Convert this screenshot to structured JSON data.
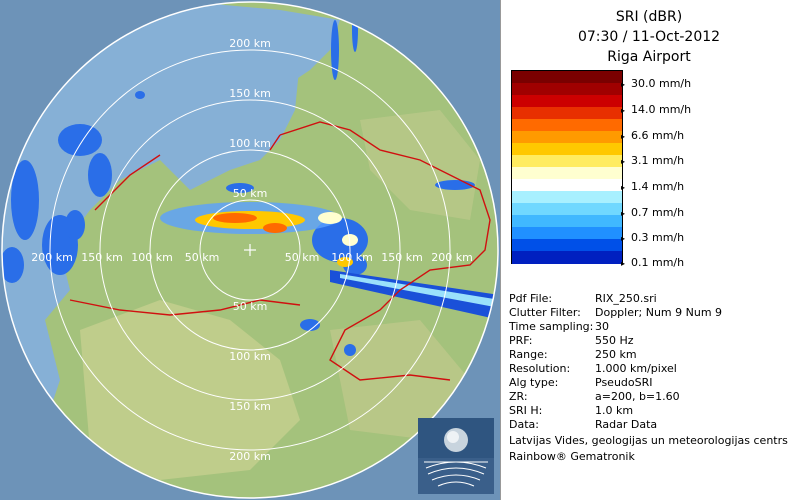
{
  "header": {
    "product": "SRI (dBR)",
    "datetime": "07:30 / 11-Oct-2012",
    "site": "Riga Airport"
  },
  "legend": {
    "colors": [
      "#7a0000",
      "#a00000",
      "#cc0000",
      "#e83000",
      "#ff6a00",
      "#ff9a00",
      "#ffc800",
      "#ffec60",
      "#ffffd0",
      "#ffffff",
      "#a8f0ff",
      "#70d8ff",
      "#40b8ff",
      "#2090ff",
      "#0050e8",
      "#0020c0"
    ],
    "labels": [
      "30.0 mm/h",
      "14.0 mm/h",
      "6.6 mm/h",
      "3.1 mm/h",
      "1.4 mm/h",
      "0.7 mm/h",
      "0.3 mm/h",
      "0.1 mm/h"
    ]
  },
  "info": [
    {
      "key": "Pdf File:",
      "value": "RIX_250.sri"
    },
    {
      "key": "Clutter Filter:",
      "value": "Doppler; Num 9 Num 9"
    },
    {
      "key": "Time sampling:",
      "value": "30"
    },
    {
      "key": "PRF:",
      "value": "550 Hz"
    },
    {
      "key": "Range:",
      "value": "250 km"
    },
    {
      "key": "Resolution:",
      "value": "1.000 km/pixel"
    },
    {
      "key": "Alg type:",
      "value": "PseudoSRI"
    },
    {
      "key": "ZR:",
      "value": "a=200, b=1.60"
    },
    {
      "key": "SRI H:",
      "value": "1.0 km"
    },
    {
      "key": "Data:",
      "value": "Radar Data"
    }
  ],
  "credits": {
    "line1": "Latvijas Vides, geologijas un meteorologijas centrs",
    "line2": "Rainbow® Gematronik"
  },
  "map": {
    "range_labels": {
      "north": [
        "200 km",
        "150 km",
        "100 km",
        "50 km"
      ],
      "south": [
        "50 km",
        "100 km",
        "150 km",
        "200 km"
      ],
      "west": [
        "200 km",
        "150 km",
        "100 km",
        "50 km"
      ],
      "east": [
        "50 km",
        "100 km",
        "150 km",
        "200 km"
      ]
    },
    "colors": {
      "sea": "#8ab4d8",
      "land": "#9cbf7a",
      "border": "#d01010",
      "rings": "#ffffff"
    }
  }
}
